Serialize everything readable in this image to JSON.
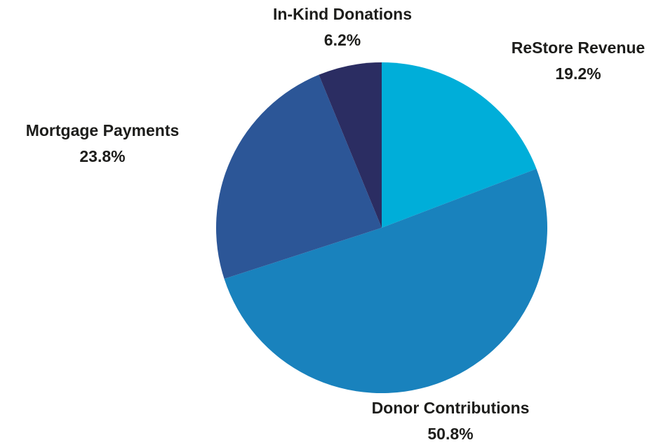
{
  "chart_data": {
    "type": "pie",
    "title": "",
    "start_angle_deg": 0,
    "direction": "clockwise",
    "slices": [
      {
        "name": "ReStore Revenue",
        "value": 19.2,
        "label": "19.2%",
        "color": "#00AED9"
      },
      {
        "name": "Donor Contributions",
        "value": 50.8,
        "label": "50.8%",
        "color": "#1982BD"
      },
      {
        "name": "Mortgage Payments",
        "value": 23.8,
        "label": "23.8%",
        "color": "#2C5697"
      },
      {
        "name": "In-Kind Donations",
        "value": 6.2,
        "label": "6.2%",
        "color": "#2B2D62"
      }
    ]
  }
}
